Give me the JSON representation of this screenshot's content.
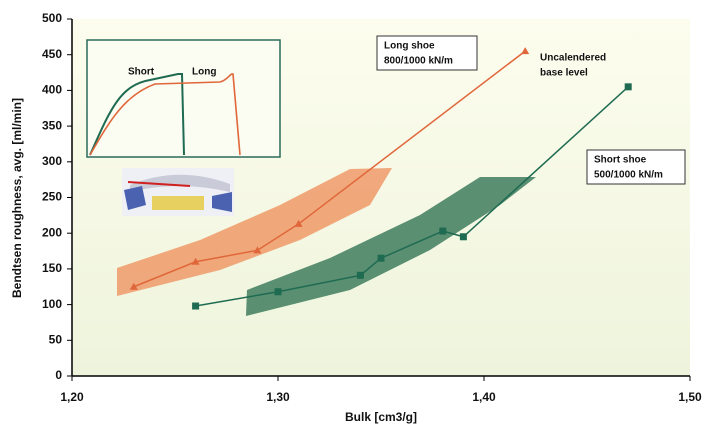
{
  "chart_data": {
    "type": "line",
    "y_label": "Bendtsen roughness, avg. [ml/min]",
    "x_label": "Bulk [cm3/g]",
    "xlim": [
      1.2,
      1.5
    ],
    "xticks": [
      {
        "value": 1.2,
        "label": "1,20"
      },
      {
        "value": 1.3,
        "label": "1,30"
      },
      {
        "value": 1.4,
        "label": "1,40"
      },
      {
        "value": 1.5,
        "label": "1,50"
      }
    ],
    "ylim": [
      0,
      500
    ],
    "yticks": [
      0,
      50,
      100,
      150,
      200,
      250,
      300,
      350,
      400,
      450,
      500
    ],
    "grid": false,
    "series": [
      {
        "name": "Long shoe",
        "pressure": "800/1000 kN/m",
        "color": "#e0673a",
        "marker": "triangle",
        "x": [
          1.23,
          1.26,
          1.29,
          1.31,
          1.42
        ],
        "values": [
          125,
          160,
          176,
          213,
          455
        ]
      },
      {
        "name": "Short shoe",
        "pressure": "500/1000 kN/m",
        "color": "#1f6b52",
        "marker": "square",
        "x": [
          1.26,
          1.3,
          1.34,
          1.35,
          1.38,
          1.39,
          1.47
        ],
        "values": [
          98,
          118,
          141,
          165,
          203,
          195,
          405
        ]
      }
    ],
    "annotation": [
      "Uncalendered",
      "base level"
    ],
    "inset_labels": [
      "Short",
      "Long"
    ]
  }
}
